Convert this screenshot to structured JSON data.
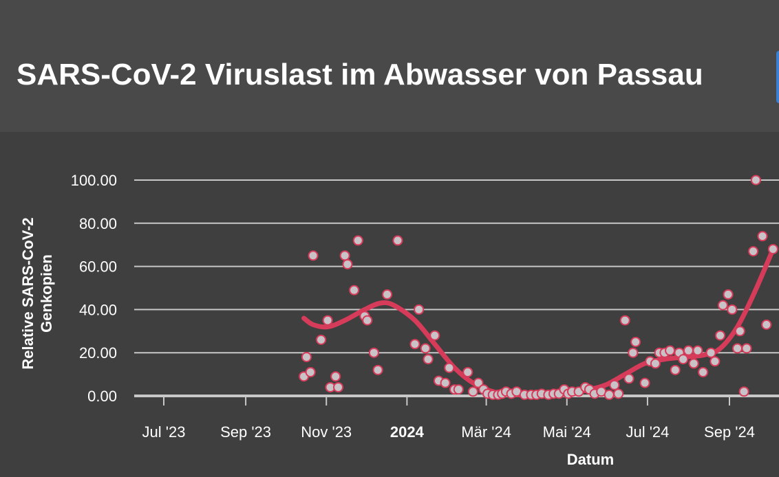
{
  "header": {
    "title": "SARS-CoV-2 Viruslast im Abwasser von Passau"
  },
  "colors": {
    "background": "#3f3f3f",
    "header_background": "#494949",
    "series": "#d63b5a",
    "point_fill": "#c9c2c6",
    "grid": "#c8c8c8"
  },
  "chart_data": {
    "type": "scatter",
    "xlabel": "Datum",
    "ylabel": "Relative SARS-CoV-2 Genkopien",
    "ylim": [
      0,
      100
    ],
    "y_ticks": [
      "0.00",
      "20.00",
      "40.00",
      "60.00",
      "80.00",
      "100.00"
    ],
    "x_tick_labels": [
      {
        "date": "2023-07-01",
        "label": "Jul '23",
        "bold": false
      },
      {
        "date": "2023-09-01",
        "label": "Sep '23",
        "bold": false
      },
      {
        "date": "2023-11-01",
        "label": "Nov '23",
        "bold": false
      },
      {
        "date": "2024-01-01",
        "label": "2024",
        "bold": true
      },
      {
        "date": "2024-03-01",
        "label": "Mär '24",
        "bold": false
      },
      {
        "date": "2024-05-01",
        "label": "Mai '24",
        "bold": false
      },
      {
        "date": "2024-07-01",
        "label": "Jul '24",
        "bold": false
      },
      {
        "date": "2024-09-01",
        "label": "Sep '24",
        "bold": false
      }
    ],
    "grid": true,
    "series": [
      {
        "type": "scatter",
        "points": [
          [
            "2023-10-15",
            9
          ],
          [
            "2023-10-17",
            18
          ],
          [
            "2023-10-20",
            11
          ],
          [
            "2023-10-22",
            65
          ],
          [
            "2023-10-28",
            26
          ],
          [
            "2023-11-02",
            35
          ],
          [
            "2023-11-04",
            4
          ],
          [
            "2023-11-08",
            9
          ],
          [
            "2023-11-10",
            4
          ],
          [
            "2023-11-15",
            65
          ],
          [
            "2023-11-17",
            61
          ],
          [
            "2023-11-22",
            49
          ],
          [
            "2023-11-25",
            72
          ],
          [
            "2023-11-30",
            37
          ],
          [
            "2023-12-02",
            35
          ],
          [
            "2023-12-07",
            20
          ],
          [
            "2023-12-10",
            12
          ],
          [
            "2023-12-17",
            47
          ],
          [
            "2023-12-25",
            72
          ],
          [
            "2024-01-07",
            24
          ],
          [
            "2024-01-10",
            40
          ],
          [
            "2024-01-15",
            22
          ],
          [
            "2024-01-17",
            17
          ],
          [
            "2024-01-22",
            28
          ],
          [
            "2024-01-25",
            7
          ],
          [
            "2024-01-30",
            6
          ],
          [
            "2024-02-02",
            13
          ],
          [
            "2024-02-06",
            3
          ],
          [
            "2024-02-09",
            3
          ],
          [
            "2024-02-16",
            11
          ],
          [
            "2024-02-20",
            2
          ],
          [
            "2024-02-24",
            6
          ],
          [
            "2024-02-28",
            3
          ],
          [
            "2024-03-02",
            1
          ],
          [
            "2024-03-06",
            0.5
          ],
          [
            "2024-03-10",
            0.5
          ],
          [
            "2024-03-13",
            1
          ],
          [
            "2024-03-16",
            2
          ],
          [
            "2024-03-20",
            1
          ],
          [
            "2024-03-24",
            2
          ],
          [
            "2024-03-30",
            0.5
          ],
          [
            "2024-04-04",
            0.5
          ],
          [
            "2024-04-08",
            0.5
          ],
          [
            "2024-04-12",
            1
          ],
          [
            "2024-04-17",
            0.5
          ],
          [
            "2024-04-21",
            1
          ],
          [
            "2024-04-25",
            1
          ],
          [
            "2024-04-29",
            3
          ],
          [
            "2024-05-02",
            1
          ],
          [
            "2024-05-05",
            2
          ],
          [
            "2024-05-10",
            2
          ],
          [
            "2024-05-15",
            4
          ],
          [
            "2024-05-18",
            3
          ],
          [
            "2024-05-22",
            1
          ],
          [
            "2024-05-27",
            2
          ],
          [
            "2024-06-02",
            0.5
          ],
          [
            "2024-06-06",
            5
          ],
          [
            "2024-06-09",
            1
          ],
          [
            "2024-06-14",
            35
          ],
          [
            "2024-06-17",
            8
          ],
          [
            "2024-06-20",
            20
          ],
          [
            "2024-06-22",
            25
          ],
          [
            "2024-06-29",
            6
          ],
          [
            "2024-07-03",
            16
          ],
          [
            "2024-07-07",
            15
          ],
          [
            "2024-07-10",
            20
          ],
          [
            "2024-07-14",
            20
          ],
          [
            "2024-07-18",
            21
          ],
          [
            "2024-07-22",
            12
          ],
          [
            "2024-07-25",
            20
          ],
          [
            "2024-07-28",
            17
          ],
          [
            "2024-08-01",
            21
          ],
          [
            "2024-08-05",
            15
          ],
          [
            "2024-08-08",
            21
          ],
          [
            "2024-08-12",
            11
          ],
          [
            "2024-08-18",
            20
          ],
          [
            "2024-08-21",
            16
          ],
          [
            "2024-08-25",
            28
          ],
          [
            "2024-08-27",
            42
          ],
          [
            "2024-08-31",
            47
          ],
          [
            "2024-09-03",
            40
          ],
          [
            "2024-09-07",
            22
          ],
          [
            "2024-09-09",
            30
          ],
          [
            "2024-09-12",
            2
          ],
          [
            "2024-09-14",
            22
          ],
          [
            "2024-09-19",
            67
          ],
          [
            "2024-09-21",
            100
          ],
          [
            "2024-09-26",
            74
          ],
          [
            "2024-09-29",
            33
          ],
          [
            "2024-10-04",
            68
          ]
        ]
      },
      {
        "type": "line",
        "points": [
          [
            "2023-10-15",
            36
          ],
          [
            "2023-10-22",
            33
          ],
          [
            "2023-11-02",
            32
          ],
          [
            "2023-11-15",
            35
          ],
          [
            "2023-11-30",
            40
          ],
          [
            "2023-12-12",
            43
          ],
          [
            "2023-12-22",
            42
          ],
          [
            "2024-01-07",
            35
          ],
          [
            "2024-01-22",
            24
          ],
          [
            "2024-02-06",
            13
          ],
          [
            "2024-02-20",
            6
          ],
          [
            "2024-03-06",
            2
          ],
          [
            "2024-03-24",
            0.5
          ],
          [
            "2024-04-12",
            0.3
          ],
          [
            "2024-04-30",
            0.8
          ],
          [
            "2024-05-15",
            2.5
          ],
          [
            "2024-05-30",
            5
          ],
          [
            "2024-06-14",
            10
          ],
          [
            "2024-06-29",
            15
          ],
          [
            "2024-07-14",
            17
          ],
          [
            "2024-07-29",
            18
          ],
          [
            "2024-08-13",
            19
          ],
          [
            "2024-08-25",
            22
          ],
          [
            "2024-09-07",
            32
          ],
          [
            "2024-09-20",
            48
          ],
          [
            "2024-10-04",
            68
          ]
        ]
      }
    ]
  }
}
